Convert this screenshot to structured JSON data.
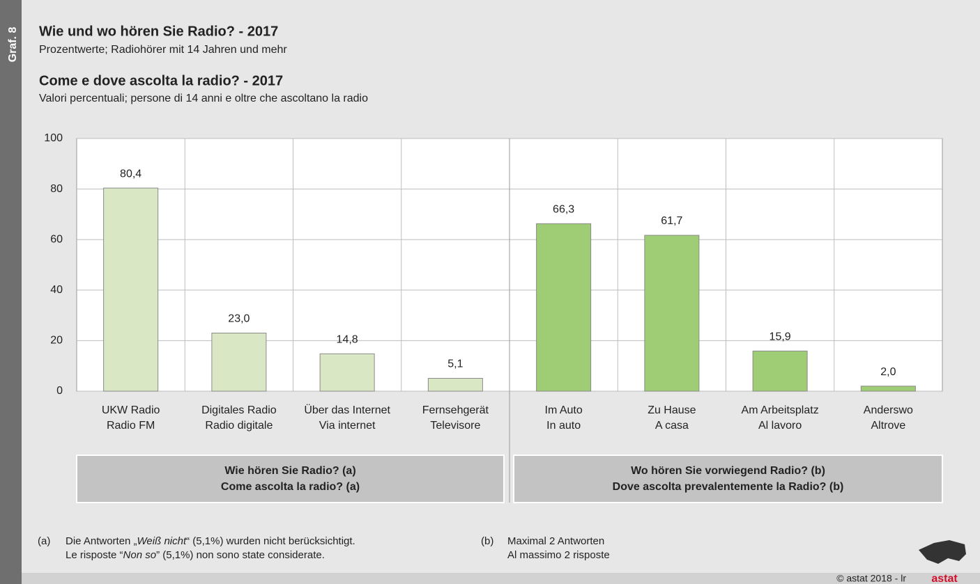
{
  "side_label": "Graf. 8",
  "chart_data": {
    "type": "bar",
    "title": "Wie und wo hören Sie Radio? - 2017",
    "subtitle": "Prozentwerte; Radiohörer mit 14 Jahren und mehr",
    "title2": "Come e dove ascolta la radio? - 2017",
    "subtitle2": "Valori percentuali; persone di 14 anni e oltre che ascoltano la radio",
    "ylim": [
      0,
      100
    ],
    "yticks": [
      0,
      20,
      40,
      60,
      80,
      100
    ],
    "grid": true,
    "groups": [
      {
        "label": [
          "Wie hören Sie Radio? (a)",
          "Come ascolta la radio? (a)"
        ],
        "color": "#d9e7c5",
        "categories": [
          [
            "UKW Radio",
            "Radio FM"
          ],
          [
            "Digitales Radio",
            "Radio digitale"
          ],
          [
            "Über das Internet",
            "Via internet"
          ],
          [
            "Fernsehgerät",
            "Televisore"
          ]
        ],
        "values": [
          80.4,
          23.0,
          14.8,
          5.1
        ],
        "value_labels": [
          "80,4",
          "23,0",
          "14,8",
          "5,1"
        ]
      },
      {
        "label": [
          "Wo hören Sie vorwiegend Radio? (b)",
          "Dove ascolta prevalentemente la Radio? (b)"
        ],
        "color": "#9fcd75",
        "categories": [
          [
            "Im Auto",
            "In auto"
          ],
          [
            "Zu Hause",
            "A casa"
          ],
          [
            "Am Arbeitsplatz",
            "Al lavoro"
          ],
          [
            "Anderswo",
            "Altrove"
          ]
        ],
        "values": [
          66.3,
          61.7,
          15.9,
          2.0
        ],
        "value_labels": [
          "66,3",
          "61,7",
          "15,9",
          "2,0"
        ]
      }
    ]
  },
  "footnotes": [
    {
      "marker": "(a)",
      "lines": [
        [
          "Die Antworten „",
          "Weiß nicht",
          "“ (5,1%) wurden nicht berücksichtigt."
        ],
        [
          "Le risposte “",
          "Non so",
          "” (5,1%) non sono state considerate."
        ]
      ]
    },
    {
      "marker": "(b)",
      "lines": [
        [
          "Maximal 2 Antworten"
        ],
        [
          "Al massimo 2 risposte"
        ]
      ]
    }
  ],
  "footer": {
    "copyright": "© astat 2018 - lr",
    "logo": "astat"
  }
}
